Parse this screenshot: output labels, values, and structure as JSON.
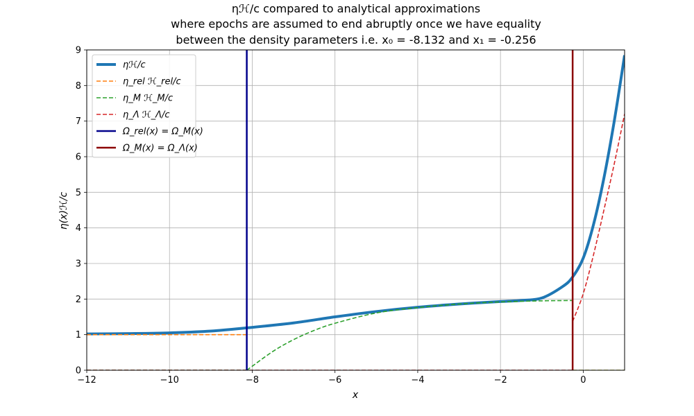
{
  "chart_data": {
    "type": "line",
    "title_lines": [
      "ηℋ/c compared to analytical approximations",
      "where epochs are assumed to end abruptly once we have equality",
      "between the density parameters i.e. x₀ = -8.132 and x₁ = -0.256"
    ],
    "xlabel": "x",
    "ylabel": "η(x)ℋ/c",
    "xlim": [
      -12,
      1
    ],
    "ylim": [
      0,
      9
    ],
    "x_ticks": [
      -12,
      -10,
      -8,
      -6,
      -4,
      -2,
      0
    ],
    "y_ticks": [
      0,
      1,
      2,
      3,
      4,
      5,
      6,
      7,
      8,
      9
    ],
    "grid": true,
    "legend_position": "top-left",
    "series": [
      {
        "name": "ηℋ/c",
        "color": "#1f77b4",
        "style": "solid-thick",
        "x": [
          -12,
          -11,
          -10,
          -9,
          -8.132,
          -7,
          -6,
          -5,
          -4,
          -3,
          -2,
          -1.5,
          -1,
          -0.5,
          -0.256,
          0,
          0.25,
          0.5,
          0.75,
          1
        ],
        "y": [
          1.02,
          1.03,
          1.05,
          1.1,
          1.19,
          1.33,
          1.5,
          1.65,
          1.77,
          1.86,
          1.93,
          1.96,
          2.03,
          2.35,
          2.62,
          3.15,
          4.1,
          5.4,
          7.0,
          8.85
        ]
      },
      {
        "name": "η_rel ℋ_rel/c",
        "color": "#ff7f0e",
        "style": "dashed",
        "x": [
          -12,
          -8.132
        ],
        "y": [
          1.0,
          1.0
        ]
      },
      {
        "name": "η_M ℋ_M/c",
        "color": "#2ca02c",
        "style": "dashed",
        "x": [
          -8.132,
          -7.5,
          -7,
          -6.5,
          -6,
          -5,
          -4,
          -3,
          -2,
          -1,
          -0.256
        ],
        "y": [
          0.0,
          0.53,
          0.86,
          1.12,
          1.32,
          1.61,
          1.76,
          1.86,
          1.92,
          1.95,
          1.96
        ]
      },
      {
        "name": "η_Λ ℋ_Λ/c",
        "color": "#d62728",
        "style": "dashed",
        "x": [
          -0.256,
          0,
          0.25,
          0.5,
          0.75,
          1
        ],
        "y": [
          1.37,
          2.15,
          3.25,
          4.5,
          5.8,
          7.2
        ]
      },
      {
        "name": "Ω_rel(x) = Ω_M(x)",
        "color": "#00008b",
        "style": "vertical",
        "x": [
          -8.132,
          -8.132
        ],
        "y": [
          0,
          9
        ]
      },
      {
        "name": "Ω_M(x) = Ω_Λ(x)",
        "color": "#8b0000",
        "style": "vertical",
        "x": [
          -0.256,
          -0.256
        ],
        "y": [
          0,
          9
        ]
      }
    ],
    "extra_lines": [
      {
        "color": "#2ca02c",
        "x": [
          -12,
          -8.132
        ],
        "y": [
          0,
          0
        ]
      },
      {
        "color": "#d62728",
        "x": [
          -12,
          -0.256
        ],
        "y": [
          0,
          0
        ]
      },
      {
        "color": "#bcbd22",
        "x": [
          -0.256,
          1
        ],
        "y": [
          0,
          0
        ]
      }
    ]
  },
  "legend": {
    "entries": [
      {
        "label": "ηℋ/c",
        "color": "#1f77b4",
        "style": "solid-thick"
      },
      {
        "label": "η_rel ℋ_rel/c",
        "color": "#ff7f0e",
        "style": "dashed"
      },
      {
        "label": "η_M ℋ_M/c",
        "color": "#2ca02c",
        "style": "dashed"
      },
      {
        "label": "η_Λ ℋ_Λ/c",
        "color": "#d62728",
        "style": "dashed"
      },
      {
        "label": "Ω_rel(x) = Ω_M(x)",
        "color": "#00008b",
        "style": "solid"
      },
      {
        "label": "Ω_M(x) = Ω_Λ(x)",
        "color": "#8b0000",
        "style": "solid"
      }
    ]
  }
}
